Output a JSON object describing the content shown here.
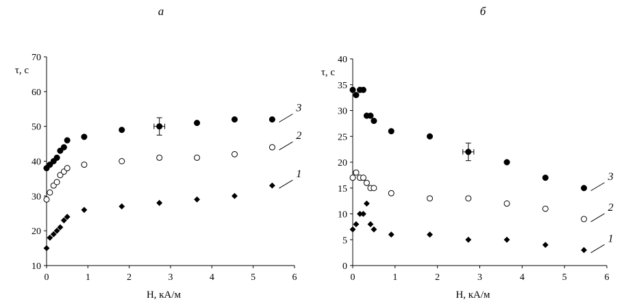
{
  "chart_data": [
    {
      "type": "scatter",
      "panel_label": "а",
      "xlabel": "H, кА/м",
      "ylabel": "τ, с",
      "xlim": [
        0,
        6
      ],
      "ylim": [
        10,
        70
      ],
      "xticks": [
        0,
        1,
        2,
        3,
        4,
        5,
        6
      ],
      "yticks": [
        10,
        20,
        30,
        40,
        50,
        60,
        70
      ],
      "grid": false,
      "series": [
        {
          "name": "1",
          "marker": "filled-diamond",
          "x": [
            0,
            0.08,
            0.17,
            0.25,
            0.33,
            0.42,
            0.5,
            0.91,
            1.82,
            2.73,
            3.64,
            4.55,
            5.46
          ],
          "y": [
            15,
            18,
            19,
            20,
            21,
            23,
            24,
            26,
            27,
            28,
            29,
            30,
            33
          ]
        },
        {
          "name": "2",
          "marker": "open-circle",
          "x": [
            0,
            0.08,
            0.17,
            0.25,
            0.33,
            0.42,
            0.5,
            0.91,
            1.82,
            2.73,
            3.64,
            4.55,
            5.46
          ],
          "y": [
            29,
            31,
            33,
            34,
            36,
            37,
            38,
            39,
            40,
            41,
            41,
            42,
            44
          ]
        },
        {
          "name": "3",
          "marker": "filled-circle",
          "x": [
            0,
            0.08,
            0.17,
            0.25,
            0.33,
            0.42,
            0.5,
            0.91,
            1.82,
            2.73,
            3.64,
            4.55,
            5.46
          ],
          "y": [
            38,
            39,
            40,
            41,
            43,
            44,
            46,
            47,
            49,
            50,
            51,
            52,
            52
          ]
        }
      ],
      "error_bar": {
        "series": "3",
        "x": 2.73,
        "y": 50,
        "x_err": 0.13,
        "y_err": 2.5
      }
    },
    {
      "type": "scatter",
      "panel_label": "б",
      "xlabel": "H, кА/м",
      "ylabel": "τ, с",
      "xlim": [
        0,
        6
      ],
      "ylim": [
        0,
        40
      ],
      "xticks": [
        0,
        1,
        2,
        3,
        4,
        5,
        6
      ],
      "yticks": [
        0,
        5,
        10,
        15,
        20,
        25,
        30,
        35,
        40
      ],
      "grid": false,
      "series": [
        {
          "name": "1",
          "marker": "filled-diamond",
          "x": [
            0,
            0.08,
            0.17,
            0.25,
            0.33,
            0.42,
            0.5,
            0.91,
            1.82,
            2.73,
            3.64,
            4.55,
            5.46
          ],
          "y": [
            7,
            8,
            10,
            10,
            12,
            8,
            7,
            6,
            6,
            5,
            5,
            4,
            3
          ]
        },
        {
          "name": "2",
          "marker": "open-circle",
          "x": [
            0,
            0.08,
            0.17,
            0.25,
            0.33,
            0.42,
            0.5,
            0.91,
            1.82,
            2.73,
            3.64,
            4.55,
            5.46
          ],
          "y": [
            17,
            18,
            17,
            17,
            16,
            15,
            15,
            14,
            13,
            13,
            12,
            11,
            9
          ]
        },
        {
          "name": "3",
          "marker": "filled-circle",
          "x": [
            0,
            0.08,
            0.17,
            0.25,
            0.33,
            0.42,
            0.5,
            0.91,
            1.82,
            2.73,
            3.64,
            4.55,
            5.46
          ],
          "y": [
            34,
            33,
            34,
            34,
            29,
            29,
            28,
            26,
            25,
            22,
            20,
            17,
            15
          ]
        }
      ],
      "error_bar": {
        "series": "3",
        "x": 2.73,
        "y": 22,
        "x_err": 0.13,
        "y_err": 1.7
      }
    }
  ]
}
